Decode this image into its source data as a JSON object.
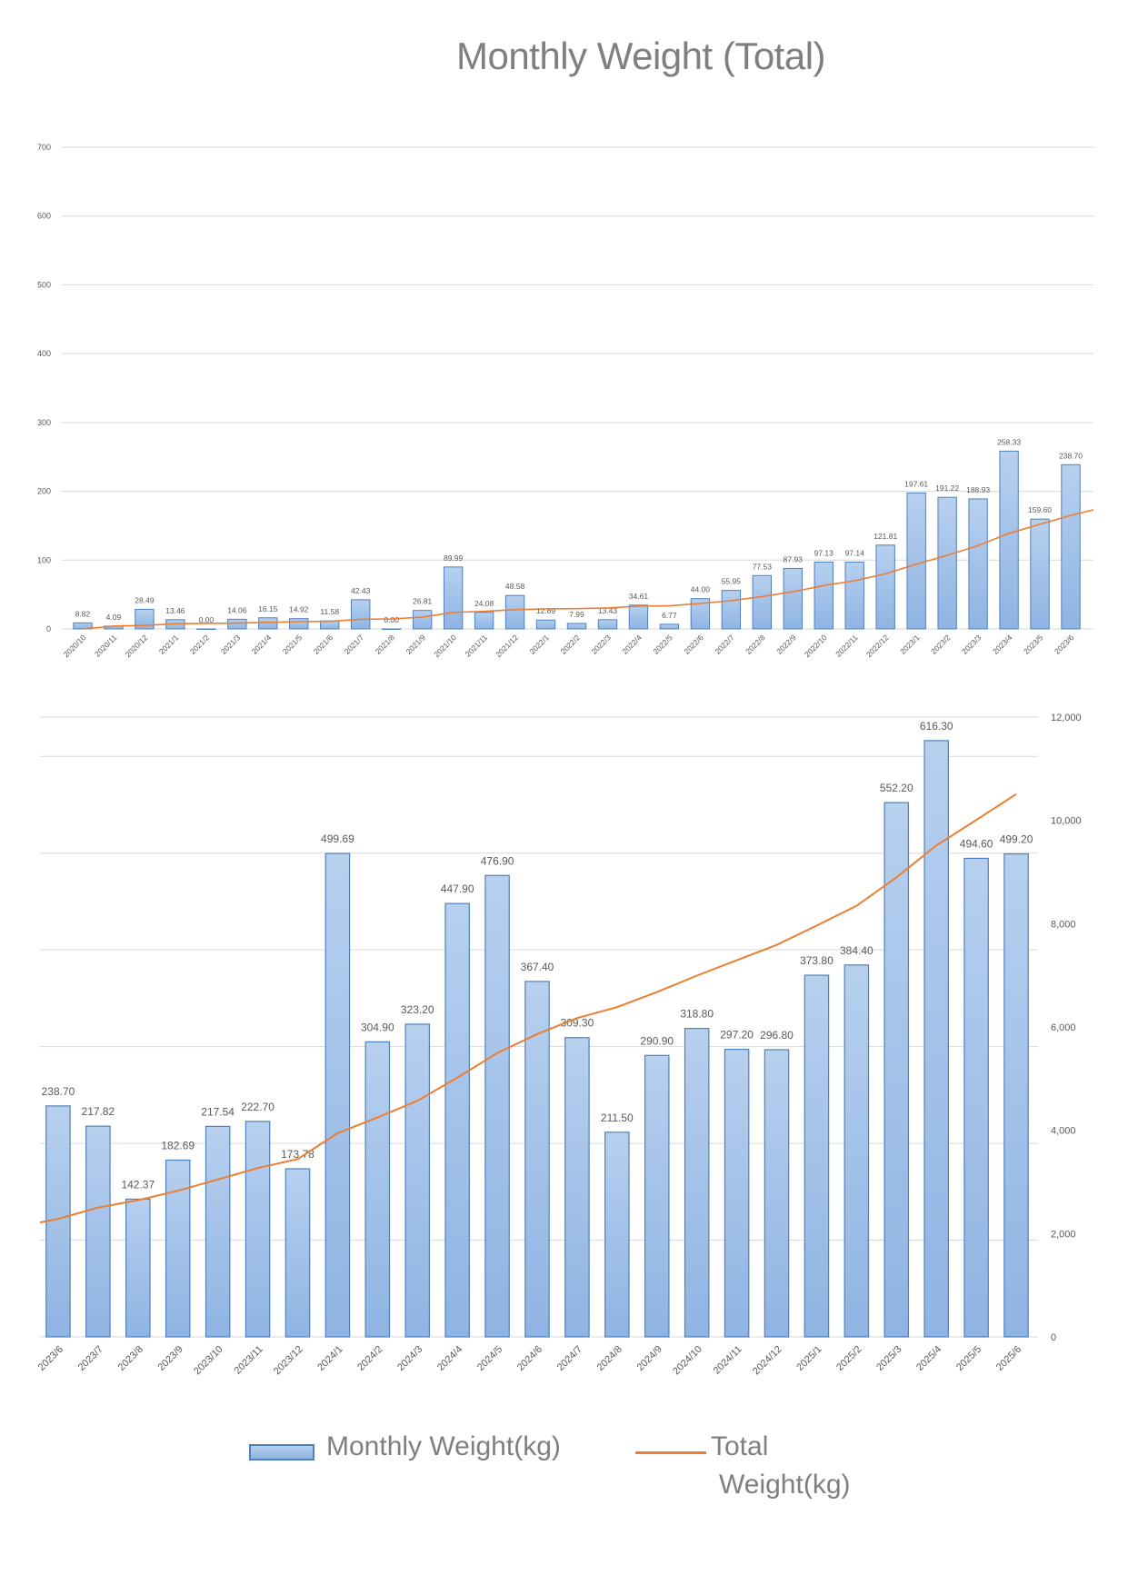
{
  "title": "Monthly Weight (Total)",
  "legend": {
    "bar_label": "Monthly Weight(kg)",
    "line_label_1": "Total",
    "line_label_2": "Weight(kg)"
  },
  "colors": {
    "bar_fill_top": "#b7d0ee",
    "bar_fill_bottom": "#8fb4e3",
    "bar_stroke": "#4f81bd",
    "line": "#ed7d31",
    "grid": "#d9d9d9",
    "label": "#595959",
    "axis_text": "#595959"
  },
  "chart_data": [
    {
      "type": "bar",
      "categories": [
        "2020/10",
        "2020/11",
        "2020/12",
        "2021/1",
        "2021/2",
        "2021/3",
        "2021/4",
        "2021/5",
        "2021/6",
        "2021/7",
        "2021/8",
        "2021/9",
        "2021/10",
        "2021/11",
        "2021/12",
        "2022/1",
        "2022/2",
        "2022/3",
        "2022/4",
        "2022/5",
        "2022/6",
        "2022/7",
        "2022/8",
        "2022/9",
        "2022/10",
        "2022/11",
        "2022/12",
        "2023/1",
        "2023/2",
        "2023/3",
        "2023/4",
        "2023/5",
        "2023/6"
      ],
      "series": [
        {
          "name": "Monthly Weight(kg)",
          "type": "bar",
          "values": [
            8.82,
            4.09,
            28.49,
            13.46,
            0.0,
            14.06,
            16.15,
            14.92,
            11.58,
            42.43,
            0.0,
            26.81,
            89.99,
            24.08,
            48.58,
            12.89,
            7.99,
            13.43,
            34.61,
            6.77,
            44.0,
            55.95,
            77.53,
            87.93,
            97.13,
            97.14,
            121.81,
            197.61,
            191.22,
            188.93,
            258.33,
            159.6,
            238.7
          ],
          "labels": [
            "8.82",
            "4.09",
            "28.49",
            "13.46",
            "0.00",
            "14.06",
            "16.15",
            "14.92",
            "11.58",
            "42.43",
            "0.00",
            "26.81",
            "89.99",
            "24.08",
            "48.58",
            "12.89",
            "7.99",
            "13.43",
            "34.61",
            "6.77",
            "44.00",
            "55.95",
            "77.53",
            "87.93",
            "97.13",
            "97.14",
            "121.81",
            "197.61",
            "191.22",
            "188.93",
            "258.33",
            "159.60",
            "238.70"
          ]
        },
        {
          "name": "Total Weight(kg)",
          "type": "line",
          "values": [
            0.0,
            4.09,
            5.0,
            7.5,
            8.0,
            8.5,
            9.5,
            10.5,
            11.0,
            14.0,
            14.5,
            17.0,
            24.0,
            25.5,
            28.0,
            29.0,
            29.5,
            30.5,
            33.0,
            33.5,
            37.0,
            41.0,
            47.0,
            54.0,
            63.0,
            70.0,
            80.0,
            94.0,
            107.0,
            121.0,
            139.0,
            152.0,
            165.0
          ]
        }
      ],
      "yticks": [
        "0",
        "100",
        "200",
        "300",
        "400",
        "500",
        "600",
        "700"
      ],
      "ylim": [
        0,
        700
      ]
    },
    {
      "type": "bar",
      "categories": [
        "2023/6",
        "2023/7",
        "2023/8",
        "2023/9",
        "2023/10",
        "2023/11",
        "2023/12",
        "2024/1",
        "2024/2",
        "2024/3",
        "2024/4",
        "2024/5",
        "2024/6",
        "2024/7",
        "2024/8",
        "2024/9",
        "2024/10",
        "2024/11",
        "2024/12",
        "2025/1",
        "2025/2",
        "2025/3",
        "2025/4",
        "2025/5",
        "2025/6"
      ],
      "series": [
        {
          "name": "Monthly Weight(kg)",
          "type": "bar",
          "values": [
            238.7,
            217.82,
            142.37,
            182.69,
            217.54,
            222.7,
            173.78,
            499.69,
            304.9,
            323.2,
            447.9,
            476.9,
            367.4,
            309.3,
            211.5,
            290.9,
            318.8,
            297.2,
            296.8,
            373.8,
            384.4,
            552.2,
            616.3,
            494.6,
            499.2
          ],
          "labels": [
            "238.70",
            "217.82",
            "142.37",
            "182.69",
            "217.54",
            "222.70",
            "173.78",
            "499.69",
            "304.90",
            "323.20",
            "447.90",
            "476.90",
            "367.40",
            "309.30",
            "211.50",
            "290.90",
            "318.80",
            "297.20",
            "296.80",
            "373.80",
            "384.40",
            "552.20",
            "616.30",
            "494.60",
            "499.20"
          ]
        },
        {
          "name": "Total Weight(kg)",
          "type": "line",
          "values": [
            2286,
            2504,
            2646,
            2829,
            3047,
            3269,
            3443,
            3943,
            4248,
            4571,
            5019,
            5496,
            5863,
            6172,
            6384,
            6675,
            6994,
            7291,
            7588,
            7962,
            8346,
            8898,
            9514,
            10009,
            10508
          ]
        }
      ],
      "y2ticks": [
        "0",
        "2,000",
        "4,000",
        "6,000",
        "8,000",
        "10,000",
        "12,000"
      ],
      "y2lim": [
        0,
        12000
      ],
      "ylim": [
        0,
        700
      ]
    }
  ]
}
